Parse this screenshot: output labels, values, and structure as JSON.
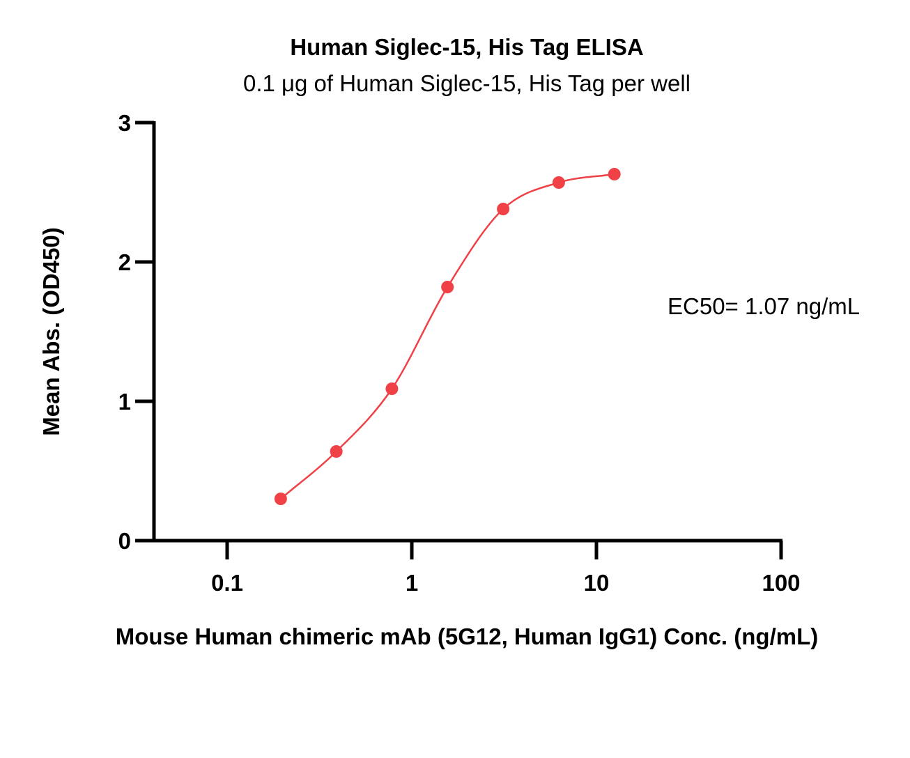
{
  "chart_data": {
    "type": "scatter",
    "title": "Human Siglec-15, His Tag ELISA",
    "subtitle": "0.1 μg of Human Siglec-15, His Tag per well",
    "xlabel": "Mouse Human chimeric mAb (5G12, Human IgG1) Conc. (ng/mL)",
    "ylabel": "Mean Abs. (OD450)",
    "xscale": "log",
    "xlim": [
      0.04,
      100
    ],
    "ylim": [
      0,
      3
    ],
    "x_ticks": [
      0.1,
      1,
      10,
      100
    ],
    "x_tick_labels": [
      "0.1",
      "1",
      "10",
      "100"
    ],
    "y_ticks": [
      0,
      1,
      2,
      3
    ],
    "y_tick_labels": [
      "0",
      "1",
      "2",
      "3"
    ],
    "grid": false,
    "series": [
      {
        "x": [
          0.195,
          0.39,
          0.78,
          1.56,
          3.125,
          6.25,
          12.5
        ],
        "y": [
          0.3,
          0.64,
          1.09,
          1.82,
          2.38,
          2.57,
          2.63
        ],
        "color": "#f04146",
        "fit": "4PL"
      }
    ],
    "annotations": [
      {
        "text": "EC50= 1.07 ng/mL"
      }
    ]
  }
}
